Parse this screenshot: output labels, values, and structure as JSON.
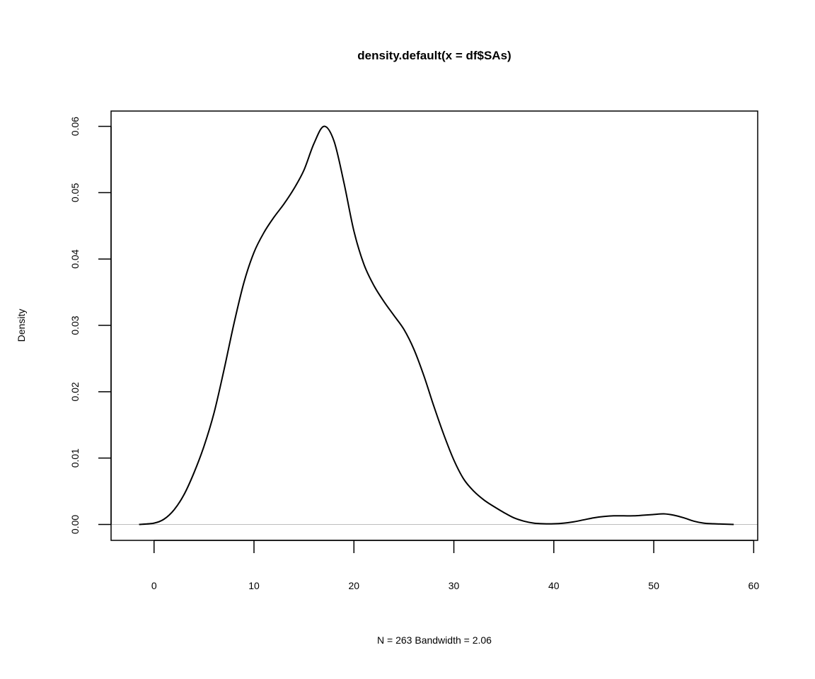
{
  "chart_data": {
    "type": "line",
    "title": "density.default(x = df$SAs)",
    "xlabel": "N = 263   Bandwidth = 2.06",
    "ylabel": "Density",
    "xlim": [
      -4.3,
      60.4
    ],
    "ylim": [
      -0.0024,
      0.0623
    ],
    "x_ticks": [
      0,
      10,
      20,
      30,
      40,
      50,
      60
    ],
    "y_ticks": [
      0.0,
      0.01,
      0.02,
      0.03,
      0.04,
      0.05,
      0.06
    ],
    "x_tick_labels": [
      "0",
      "10",
      "20",
      "30",
      "40",
      "50",
      "60"
    ],
    "y_tick_labels": [
      "0.00",
      "0.01",
      "0.02",
      "0.03",
      "0.04",
      "0.05",
      "0.06"
    ],
    "baseline": 0,
    "grid": false,
    "colors": {
      "line": "#000000",
      "baseline": "#bebebe",
      "frame": "#000000"
    },
    "series": [
      {
        "x": [
          -1.5,
          0,
          1,
          2,
          3,
          4,
          5,
          6,
          7,
          8,
          9,
          10,
          11,
          12,
          13,
          14,
          15,
          16,
          17,
          18,
          19,
          20,
          21,
          22,
          23,
          24,
          25,
          26,
          27,
          28,
          29,
          30,
          31,
          32,
          33,
          34,
          35,
          36,
          37,
          38,
          39,
          40,
          41,
          42,
          43,
          44,
          45,
          46,
          47,
          48,
          49,
          50,
          51,
          52,
          53,
          54,
          55,
          56,
          58
        ],
        "y": [
          0.0,
          0.0002,
          0.0008,
          0.0022,
          0.0045,
          0.0078,
          0.0118,
          0.0168,
          0.0233,
          0.0303,
          0.0365,
          0.041,
          0.044,
          0.0463,
          0.0483,
          0.0506,
          0.0534,
          0.0574,
          0.06,
          0.0578,
          0.0515,
          0.0442,
          0.0392,
          0.036,
          0.0336,
          0.0315,
          0.0294,
          0.0264,
          0.0224,
          0.0178,
          0.0135,
          0.0097,
          0.0068,
          0.005,
          0.0037,
          0.0027,
          0.0018,
          0.001,
          0.0005,
          0.0002,
          0.0001,
          0.0001,
          0.0002,
          0.0004,
          0.0007,
          0.001,
          0.0012,
          0.0013,
          0.0013,
          0.0013,
          0.0014,
          0.0015,
          0.0016,
          0.0014,
          0.001,
          0.0005,
          0.0002,
          0.0001,
          0.0
        ]
      }
    ]
  }
}
